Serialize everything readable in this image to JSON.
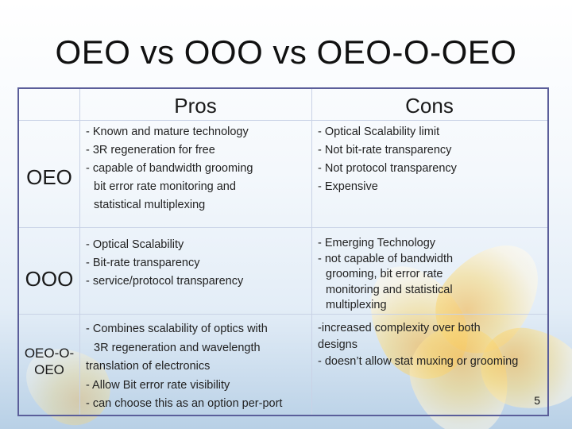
{
  "slide": {
    "title": "OEO vs OOO vs OEO-O-OEO",
    "page_number": "5"
  },
  "table": {
    "headers": {
      "pros": "Pros",
      "cons": "Cons"
    },
    "rows": [
      {
        "label": "OEO",
        "pros": [
          "- Known and mature technology",
          "- 3R regeneration for free",
          "- capable of bandwidth grooming",
          "bit error rate monitoring and",
          "statistical multiplexing"
        ],
        "cons": [
          "- Optical Scalability limit",
          "- Not bit-rate transparency",
          "- Not protocol transparency",
          "- Expensive"
        ]
      },
      {
        "label": "OOO",
        "pros": [
          "- Optical Scalability",
          "- Bit-rate transparency",
          "- service/protocol transparency"
        ],
        "cons": [
          "- Emerging Technology",
          "- not capable of bandwidth",
          "grooming, bit error rate",
          "monitoring and statistical",
          "multiplexing"
        ]
      },
      {
        "label_lines": [
          "OEO-O-",
          "OEO"
        ],
        "pros": [
          "- Combines scalability of optics with",
          "3R regeneration and wavelength",
          "translation of electronics",
          "- Allow Bit error rate visibility",
          "- can choose this as an option per-port"
        ],
        "cons": [
          "-increased complexity over both",
          "designs",
          "- doesn’t allow stat muxing or grooming"
        ]
      }
    ]
  }
}
